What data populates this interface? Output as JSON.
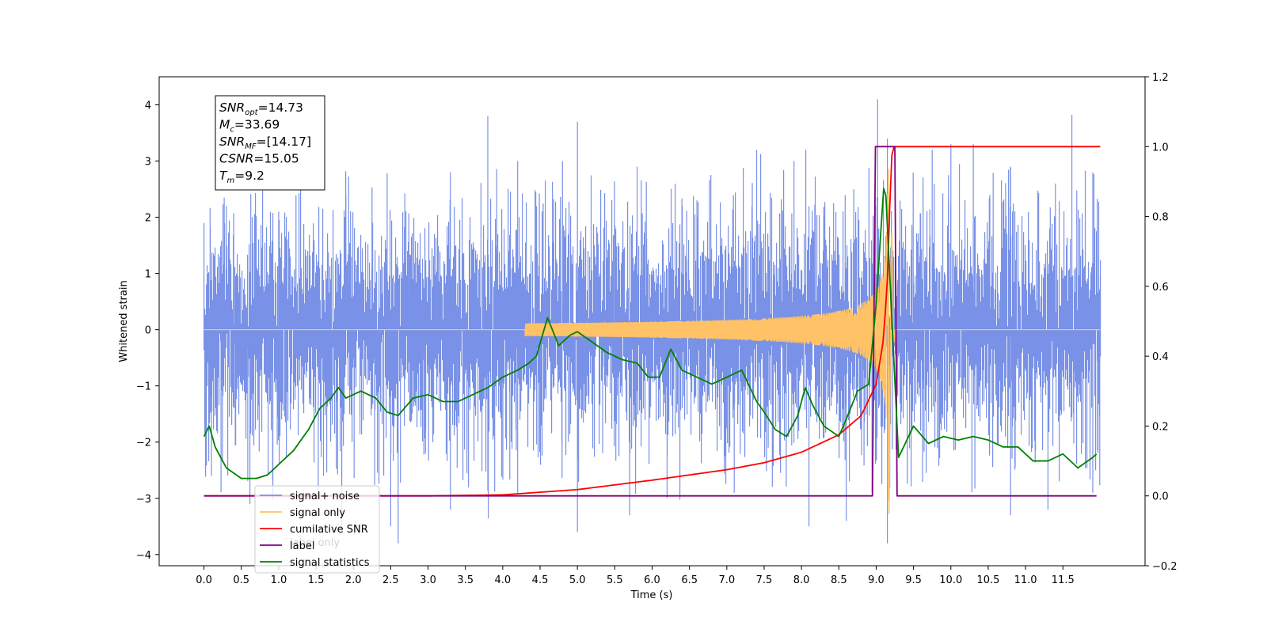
{
  "chart_data": {
    "type": "line",
    "xlabel": "Time (s)",
    "ylabel": "Whitened strain",
    "xlim": [
      -0.6,
      12.6
    ],
    "ylim": [
      -4.2,
      4.5
    ],
    "y2lim": [
      -0.2,
      1.2
    ],
    "x_ticks": [
      "0.0",
      "0.5",
      "1.0",
      "1.5",
      "2.0",
      "2.5",
      "3.0",
      "3.5",
      "4.0",
      "4.5",
      "5.0",
      "5.5",
      "6.0",
      "6.5",
      "7.0",
      "7.5",
      "8.0",
      "8.5",
      "9.0",
      "9.5",
      "10.0",
      "10.5",
      "11.0",
      "11.5"
    ],
    "y_ticks": [
      "4",
      "3",
      "2",
      "1",
      "0",
      "−1",
      "−2",
      "−3",
      "−4"
    ],
    "y2_ticks": [
      "1.2",
      "1.0",
      "0.8",
      "0.6",
      "0.4",
      "0.2",
      "0.0",
      "−0.2"
    ],
    "legend": {
      "placement": "lower-left",
      "entries": [
        {
          "name": "signal+ noise",
          "color": "#7991e6"
        },
        {
          "name": "signal only",
          "color": "#ffc266"
        },
        {
          "name": "cumilative SNR",
          "color": "#ff0000"
        },
        {
          "name": "label",
          "color": "#800080"
        },
        {
          "name": "signal statistics",
          "color": "#008000"
        }
      ],
      "hidden_entry": "label only"
    },
    "annotation": {
      "lines": [
        {
          "main": "SNR",
          "sub": "opt",
          "value": "=14.73"
        },
        {
          "main": "M",
          "sub": "c",
          "value": "=33.69"
        },
        {
          "main": "SNR",
          "sub": "MF",
          "value": "=[14.17]"
        },
        {
          "main": "CSNR",
          "sub": "",
          "value": "=15.05"
        },
        {
          "main": "T",
          "sub": "m",
          "value": "=9.2"
        }
      ]
    },
    "series": [
      {
        "name": "signal+ noise",
        "color": "#7991e6",
        "axis": "left",
        "envelope": {
          "x": [
            0.0,
            12.0
          ],
          "typical_low": -1.7,
          "typical_high": 1.7,
          "upward_spikes": [
            [
              0.0,
              1.9
            ],
            [
              0.3,
              2.2
            ],
            [
              1.0,
              2.1
            ],
            [
              1.9,
              2.4
            ],
            [
              3.3,
              2.8
            ],
            [
              3.8,
              3.8
            ],
            [
              4.2,
              3.0
            ],
            [
              4.8,
              3.0
            ],
            [
              5.0,
              3.7
            ],
            [
              5.8,
              2.9
            ],
            [
              6.6,
              2.3
            ],
            [
              7.4,
              3.2
            ],
            [
              7.9,
              3.0
            ],
            [
              8.7,
              2.5
            ],
            [
              9.02,
              4.1
            ],
            [
              9.15,
              3.4
            ],
            [
              9.75,
              3.2
            ],
            [
              10.0,
              3.3
            ],
            [
              10.3,
              3.3
            ],
            [
              10.8,
              2.9
            ],
            [
              11.4,
              2.6
            ],
            [
              11.9,
              2.8
            ]
          ],
          "downward_spikes": [
            [
              0.1,
              -2.6
            ],
            [
              1.6,
              -2.6
            ],
            [
              2.5,
              -3.5
            ],
            [
              2.6,
              -3.8
            ],
            [
              3.3,
              -3.2
            ],
            [
              4.2,
              -2.9
            ],
            [
              5.0,
              -3.6
            ],
            [
              5.7,
              -3.3
            ],
            [
              6.2,
              -3.0
            ],
            [
              7.1,
              -2.9
            ],
            [
              8.1,
              -3.5
            ],
            [
              8.6,
              -3.4
            ],
            [
              9.15,
              -3.8
            ],
            [
              10.8,
              -3.3
            ],
            [
              11.3,
              -3.2
            ],
            [
              11.9,
              -2.9
            ]
          ]
        }
      },
      {
        "name": "signal only",
        "color": "#ffc266",
        "axis": "left",
        "chirp": {
          "start": 4.3,
          "merger": 9.17,
          "end": 9.25,
          "peak_amplitude": 3.4
        }
      },
      {
        "name": "cumilative SNR",
        "color": "#ff0000",
        "axis": "right",
        "x": [
          0.0,
          3.0,
          4.0,
          5.0,
          6.0,
          7.0,
          7.5,
          8.0,
          8.5,
          8.8,
          9.0,
          9.1,
          9.15,
          9.2,
          9.22,
          12.0
        ],
        "y": [
          0.0,
          0.0,
          0.003,
          0.018,
          0.045,
          0.075,
          0.095,
          0.125,
          0.175,
          0.23,
          0.32,
          0.45,
          0.62,
          0.95,
          1.0,
          1.0
        ]
      },
      {
        "name": "label",
        "color": "#800080",
        "axis": "right",
        "x": [
          0.0,
          8.95,
          8.99,
          9.25,
          9.28,
          11.95
        ],
        "y": [
          0.0,
          0.0,
          1.0,
          1.0,
          0.0,
          0.0
        ]
      },
      {
        "name": "signal statistics",
        "color": "#008000",
        "axis": "right",
        "x": [
          0.0,
          0.07,
          0.15,
          0.3,
          0.5,
          0.7,
          0.85,
          1.0,
          1.2,
          1.4,
          1.55,
          1.7,
          1.8,
          1.9,
          2.1,
          2.3,
          2.45,
          2.6,
          2.8,
          3.0,
          3.2,
          3.4,
          3.6,
          3.8,
          4.0,
          4.2,
          4.35,
          4.45,
          4.6,
          4.75,
          4.9,
          5.0,
          5.2,
          5.4,
          5.6,
          5.8,
          5.95,
          6.1,
          6.25,
          6.4,
          6.6,
          6.8,
          7.0,
          7.2,
          7.4,
          7.5,
          7.65,
          7.8,
          7.95,
          8.05,
          8.15,
          8.3,
          8.5,
          8.6,
          8.75,
          8.9,
          9.0,
          9.1,
          9.13,
          9.2,
          9.3,
          9.5,
          9.7,
          9.9,
          10.1,
          10.3,
          10.5,
          10.7,
          10.9,
          11.1,
          11.3,
          11.5,
          11.7,
          11.9,
          11.95
        ],
        "y": [
          0.17,
          0.2,
          0.14,
          0.08,
          0.05,
          0.05,
          0.06,
          0.09,
          0.13,
          0.19,
          0.25,
          0.28,
          0.31,
          0.28,
          0.3,
          0.28,
          0.24,
          0.23,
          0.28,
          0.29,
          0.27,
          0.27,
          0.29,
          0.31,
          0.34,
          0.36,
          0.38,
          0.4,
          0.51,
          0.43,
          0.46,
          0.47,
          0.44,
          0.41,
          0.39,
          0.38,
          0.34,
          0.34,
          0.42,
          0.36,
          0.34,
          0.32,
          0.34,
          0.36,
          0.27,
          0.24,
          0.19,
          0.17,
          0.23,
          0.31,
          0.26,
          0.2,
          0.17,
          0.22,
          0.3,
          0.32,
          0.55,
          0.88,
          0.86,
          0.55,
          0.11,
          0.2,
          0.15,
          0.17,
          0.16,
          0.17,
          0.16,
          0.14,
          0.14,
          0.1,
          0.1,
          0.12,
          0.08,
          0.11,
          0.12
        ]
      }
    ]
  }
}
